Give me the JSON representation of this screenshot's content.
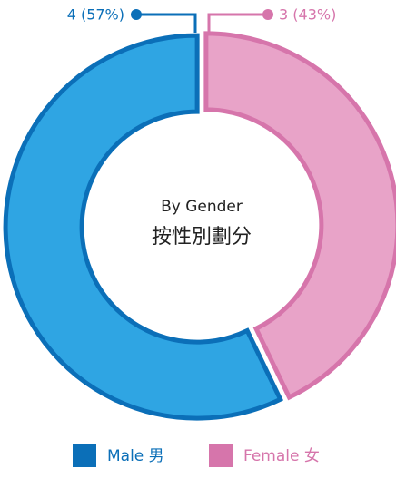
{
  "chart_data": {
    "type": "pie",
    "donut": true,
    "center_text": [
      "By Gender",
      "按性別劃分"
    ],
    "categories": [
      "Male 男",
      "Female 女"
    ],
    "values": [
      4,
      3
    ],
    "value_labels": [
      "4 (57%)",
      "3 (43%)"
    ],
    "colors": [
      "#2fa5e3",
      "#e8a3c8"
    ],
    "edge_colors": [
      "#0b6fb8",
      "#d675ab"
    ],
    "legend": "bottom"
  }
}
